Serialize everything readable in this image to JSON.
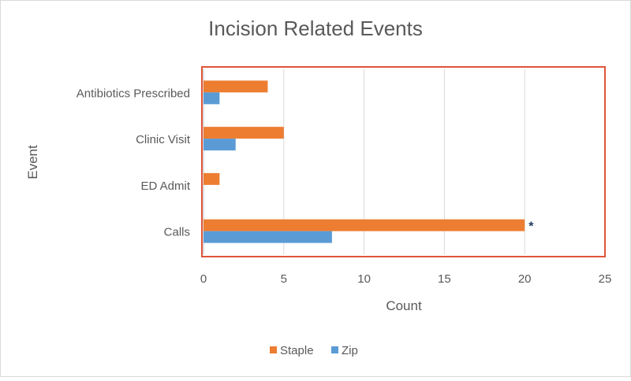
{
  "chart_data": {
    "type": "bar",
    "orientation": "horizontal",
    "title": "Incision Related Events",
    "xlabel": "Count",
    "ylabel": "Event",
    "xlim": [
      0,
      25
    ],
    "xticks": [
      "0",
      "5",
      "10",
      "15",
      "20",
      "25"
    ],
    "grid": "vertical",
    "legend_position": "bottom",
    "categories": [
      "Antibiotics Prescribed",
      "Clinic Visit",
      "ED Admit",
      "Calls"
    ],
    "series": [
      {
        "name": "Staple",
        "color": "#ed7d31",
        "values": [
          4,
          5,
          1,
          20
        ]
      },
      {
        "name": "Zip",
        "color": "#5b9bd5",
        "values": [
          1,
          2,
          0,
          8
        ]
      }
    ],
    "annotations": [
      {
        "text": "*",
        "category": "Calls",
        "series": "Staple"
      }
    ],
    "highlight_border_color": "#e0553a"
  }
}
